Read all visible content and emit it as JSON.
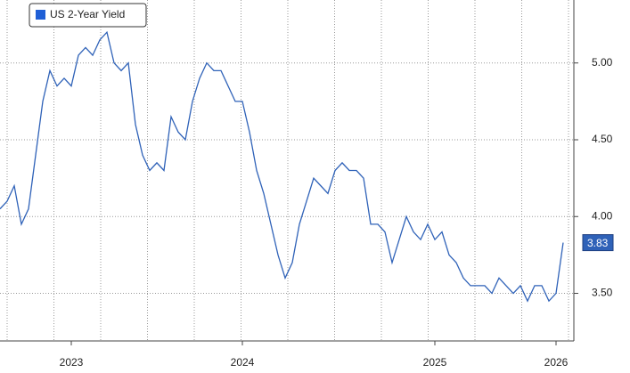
{
  "chart_data": {
    "type": "line",
    "series": [
      {
        "name": "US 2-Year Yield",
        "color": "#2f62b8",
        "values": [
          4.05,
          4.1,
          4.2,
          3.95,
          4.05,
          4.4,
          4.75,
          4.95,
          4.85,
          4.9,
          4.85,
          5.05,
          5.1,
          5.05,
          5.15,
          5.2,
          5.0,
          4.95,
          5.0,
          4.6,
          4.4,
          4.3,
          4.35,
          4.3,
          4.65,
          4.55,
          4.5,
          4.75,
          4.9,
          5.0,
          4.95,
          4.95,
          4.85,
          4.75,
          4.75,
          4.55,
          4.3,
          4.15,
          3.95,
          3.75,
          3.6,
          3.7,
          3.95,
          4.1,
          4.25,
          4.2,
          4.15,
          4.3,
          4.35,
          4.3,
          4.3,
          4.25,
          3.95,
          3.95,
          3.9,
          3.7,
          3.85,
          4.0,
          3.9,
          3.85,
          3.95,
          3.85,
          3.9,
          3.75,
          3.7,
          3.6,
          3.55,
          3.55,
          3.55,
          3.5,
          3.6,
          3.55,
          3.5,
          3.55,
          3.45,
          3.55,
          3.55,
          3.45,
          3.5,
          3.83
        ]
      }
    ],
    "categories": [
      null,
      null,
      null,
      null,
      null,
      null,
      null,
      null,
      null,
      null,
      "2023",
      null,
      null,
      null,
      null,
      null,
      null,
      null,
      null,
      null,
      null,
      null,
      null,
      null,
      null,
      null,
      null,
      null,
      null,
      null,
      null,
      null,
      null,
      null,
      "2024",
      null,
      null,
      null,
      null,
      null,
      null,
      null,
      null,
      null,
      null,
      null,
      null,
      null,
      null,
      null,
      null,
      null,
      null,
      null,
      null,
      null,
      null,
      null,
      null,
      null,
      null,
      "2025",
      null,
      null,
      null,
      null,
      null,
      null,
      null,
      null,
      null,
      null,
      null,
      null,
      null,
      null,
      null,
      null,
      "2026",
      null
    ],
    "ylim": [
      3.19,
      5.41
    ],
    "yticks": [
      {
        "value": 3.5,
        "label": "3.50"
      },
      {
        "value": 4.0,
        "label": "4.00"
      },
      {
        "value": 4.5,
        "label": "4.50"
      },
      {
        "value": 5.0,
        "label": "5.00"
      }
    ],
    "grid": true,
    "legend": "top-left",
    "last_value_badge": true
  }
}
